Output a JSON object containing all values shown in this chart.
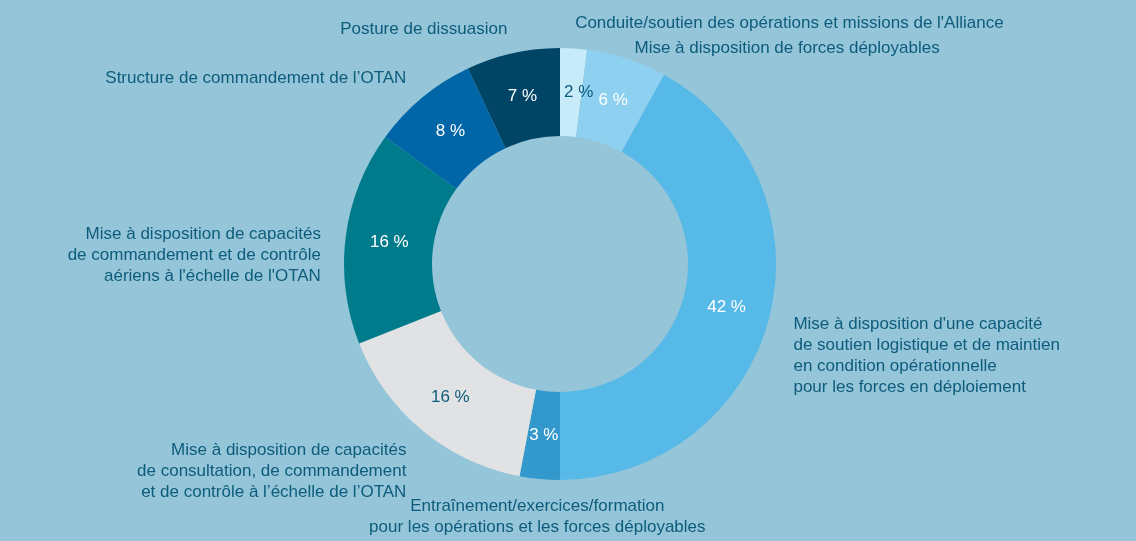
{
  "chart_data": {
    "type": "donut",
    "categories": [
      "Conduite/soutien des opérations et missions de l'Alliance",
      "Mise à disposition de forces déployables",
      "Mise à disposition d'une capacité\nde soutien logistique et de maintien\nen condition opérationnelle\npour les forces en déploiement",
      "Entraînement/exercices/formation\npour les opérations et les forces déployables",
      "Mise à disposition de capacités\nde consultation, de commandement\net de contrôle à l’échelle de l’OTAN",
      "Mise à disposition de capacités\nde commandement et de contrôle\naériens à l'échelle de l'OTAN",
      "Structure de commandement de l’OTAN",
      "Posture de dissuasion"
    ],
    "values": [
      2,
      6,
      42,
      3,
      16,
      16,
      8,
      7
    ],
    "value_labels": [
      "2 %",
      "6 %",
      "42 %",
      "3 %",
      "16 %",
      "16 %",
      "8 %",
      "7 %"
    ],
    "colors": [
      "#c8ebf9",
      "#8dd0f0",
      "#56b9e8",
      "#3398cc",
      "#e0e2e4",
      "#007b8c",
      "#0066a8",
      "#004466"
    ]
  }
}
